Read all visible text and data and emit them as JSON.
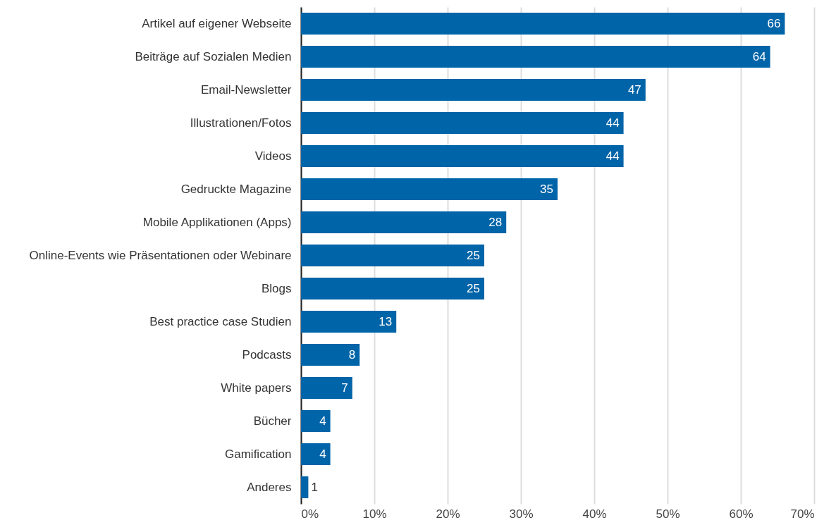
{
  "chart_data": {
    "type": "bar",
    "orientation": "horizontal",
    "categories": [
      "Artikel auf eigener Webseite",
      "Beiträge auf Sozialen Medien",
      "Email-Newsletter",
      "Illustrationen/Fotos",
      "Videos",
      "Gedruckte Magazine",
      "Mobile Applikationen (Apps)",
      "Online-Events wie Präsentationen oder Webinare",
      "Blogs",
      "Best practice case Studien",
      "Podcasts",
      "White papers",
      "Bücher",
      "Gamification",
      "Anderes"
    ],
    "values": [
      66,
      64,
      47,
      44,
      44,
      35,
      28,
      25,
      25,
      13,
      8,
      7,
      4,
      4,
      1
    ],
    "color": "#0064a8",
    "xlim": [
      0,
      70
    ],
    "xticks": [
      {
        "value": 0,
        "label": "0%"
      },
      {
        "value": 10,
        "label": "10%"
      },
      {
        "value": 20,
        "label": "20%"
      },
      {
        "value": 30,
        "label": "30%"
      },
      {
        "value": 40,
        "label": "40%"
      },
      {
        "value": 50,
        "label": "50%"
      },
      {
        "value": 60,
        "label": "60%"
      },
      {
        "value": 70,
        "label": "70%"
      }
    ],
    "grid": "x",
    "data_labels": true
  }
}
